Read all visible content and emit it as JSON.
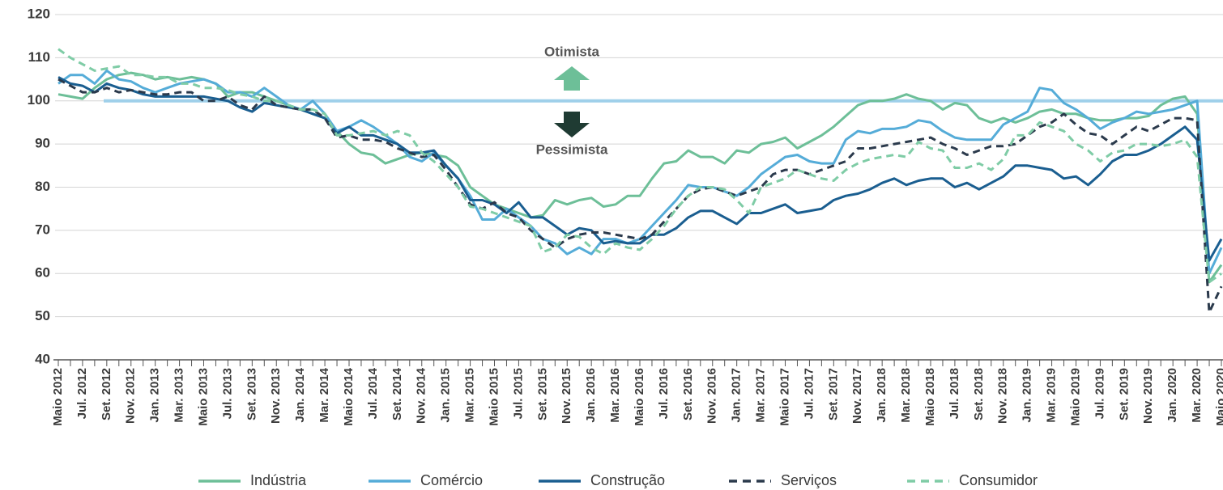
{
  "chart_data": {
    "type": "line",
    "categories": [
      "Maio 2012",
      null,
      "Jul. 2012",
      null,
      "Set. 2012",
      null,
      "Nov. 2012",
      null,
      "Jan. 2013",
      null,
      "Mar. 2013",
      null,
      "Maio 2013",
      null,
      "Jul. 2013",
      null,
      "Set. 2013",
      null,
      "Nov. 2013",
      null,
      "Jan. 2014",
      null,
      "Mar. 2014",
      null,
      "Maio 2014",
      null,
      "Jul. 2014",
      null,
      "Set. 2014",
      null,
      "Nov. 2014",
      null,
      "Jan. 2015",
      null,
      "Mar. 2015",
      null,
      "Maio 2015",
      null,
      "Jul. 2015",
      null,
      "Set. 2015",
      null,
      "Nov. 2015",
      null,
      "Jan. 2016",
      null,
      "Mar. 2016",
      null,
      "Maio 2016",
      null,
      "Jul. 2016",
      null,
      "Set. 2016",
      null,
      "Nov. 2016",
      null,
      "Jan. 2017",
      null,
      "Mar. 2017",
      null,
      "Maio 2017",
      null,
      "Jul. 2017",
      null,
      "Set. 2017",
      null,
      "Nov. 2017",
      null,
      "Jan. 2018",
      null,
      "Mar. 2018",
      null,
      "Maio 2018",
      null,
      "Jul. 2018",
      null,
      "Set. 2018",
      null,
      "Nov. 2018",
      null,
      "Jan. 2019",
      null,
      "Mar. 2019",
      null,
      "Maio 2019",
      null,
      "Jul. 2019",
      null,
      "Set. 2019",
      null,
      "Nov. 2019",
      null,
      "Jan. 2020",
      null,
      "Mar. 2020",
      null,
      "Maio 2020"
    ],
    "series": [
      {
        "name": "Indústria",
        "color": "#6dbf98",
        "dash": false,
        "values": [
          101.5,
          101,
          100.5,
          103,
          105,
          106,
          106.5,
          106,
          105,
          105.5,
          105,
          105.5,
          105,
          104,
          101,
          102,
          102,
          101,
          100,
          99,
          98,
          97,
          96,
          93,
          90,
          88,
          87.5,
          85.5,
          86.5,
          87.5,
          88,
          87.5,
          87,
          85,
          80,
          78,
          76,
          75,
          74,
          73,
          73.5,
          77,
          76,
          77,
          77.5,
          75.5,
          76,
          78,
          78,
          82,
          85.5,
          86,
          88.5,
          87,
          87,
          85.5,
          88.5,
          88,
          90,
          90.5,
          91.5,
          89,
          90.5,
          92,
          94,
          96.5,
          99,
          100,
          100,
          100.5,
          101.5,
          100.5,
          100,
          98,
          99.5,
          99,
          96,
          95,
          96,
          95,
          96,
          97.5,
          98,
          97,
          97,
          96,
          95.5,
          95.5,
          96,
          96,
          96.5,
          99,
          100.5,
          101,
          97,
          58,
          62
        ]
      },
      {
        "name": "Comércio",
        "color": "#55acd8",
        "dash": false,
        "values": [
          104,
          106,
          106,
          104,
          107,
          105,
          104.5,
          103,
          102,
          103,
          104,
          104.5,
          105,
          104,
          102,
          102,
          101,
          103,
          101,
          99,
          98,
          100,
          97,
          93,
          94,
          95.5,
          94,
          92,
          90,
          87,
          86,
          88,
          85,
          82,
          78,
          72.5,
          72.5,
          75,
          73,
          71,
          68,
          67,
          64.5,
          66,
          64.5,
          68,
          68,
          67,
          68,
          71,
          74,
          77,
          80.5,
          80,
          80,
          79,
          78,
          80,
          83,
          85,
          87,
          87.5,
          86,
          85.5,
          85.5,
          91,
          93,
          92.5,
          93.5,
          93.5,
          94,
          95.5,
          95,
          93,
          91.5,
          91,
          91,
          91,
          94.5,
          96,
          97.5,
          103,
          102.5,
          99.5,
          98,
          96,
          93.5,
          95,
          96,
          97.5,
          97,
          97.5,
          98,
          99,
          100,
          60,
          66
        ]
      },
      {
        "name": "Construção",
        "color": "#1a5e90",
        "dash": false,
        "values": [
          105.5,
          104,
          103.5,
          102,
          104,
          103,
          102.5,
          101.5,
          101,
          101,
          101,
          101,
          101,
          100.5,
          100,
          98.5,
          97.5,
          99.5,
          99,
          98.5,
          98,
          97,
          96,
          92.5,
          94,
          92,
          92,
          91,
          90,
          88,
          88,
          88.5,
          85,
          82,
          77,
          77,
          76,
          74,
          76.5,
          73,
          73,
          71,
          69,
          70.5,
          70,
          67,
          67.5,
          67,
          67,
          69,
          69,
          70.5,
          73,
          74.5,
          74.5,
          73,
          71.5,
          74,
          74,
          75,
          76,
          74,
          74.5,
          75,
          77,
          78,
          78.5,
          79.5,
          81,
          82,
          80.5,
          81.5,
          82,
          82,
          80,
          81,
          79.5,
          81,
          82.5,
          85,
          85,
          84.5,
          84,
          82,
          82.5,
          80.5,
          83,
          86,
          87.5,
          87.5,
          88.5,
          90,
          92,
          94,
          91,
          63,
          68
        ]
      },
      {
        "name": "Serviços",
        "color": "#2b3a4c",
        "dash": true,
        "values": [
          105,
          103.5,
          102,
          102,
          103,
          102,
          102.5,
          102,
          101.5,
          101.5,
          102,
          102,
          100,
          100,
          101,
          99,
          98,
          101,
          99,
          98.5,
          98,
          98,
          96,
          91.5,
          92,
          91,
          91,
          90.5,
          89,
          88,
          87,
          87.5,
          84,
          80,
          76,
          75,
          76.5,
          74,
          73,
          70,
          68,
          66,
          68,
          69,
          69.5,
          69.5,
          69,
          68.5,
          68,
          69,
          72,
          75,
          78,
          79.5,
          80,
          79,
          78,
          79,
          80,
          83,
          84,
          84,
          83,
          84,
          85,
          86,
          89,
          89,
          89.5,
          90,
          90.5,
          91,
          91.5,
          90,
          89,
          87.5,
          88.5,
          89.5,
          89.5,
          90,
          92,
          94,
          95,
          97,
          94.5,
          92.5,
          92,
          90,
          92,
          94,
          93,
          94.5,
          96,
          96,
          95.5,
          51,
          57
        ]
      },
      {
        "name": "Consumidor",
        "color": "#7fcca6",
        "dash": true,
        "values": [
          112,
          110,
          108.5,
          107,
          107.5,
          108,
          106,
          106,
          105.5,
          105.5,
          104,
          104,
          103,
          103,
          102.5,
          101.5,
          101,
          100,
          100,
          99,
          98,
          98,
          97,
          92,
          92,
          92.5,
          93,
          92,
          93,
          92,
          88,
          86,
          83,
          80,
          75.5,
          75,
          74,
          73,
          72,
          71,
          65,
          66,
          69,
          68.5,
          66,
          64.5,
          67,
          66,
          65.5,
          68,
          71,
          75,
          78,
          80,
          80,
          79.5,
          77,
          74,
          80,
          81,
          82,
          84,
          83,
          82,
          81.5,
          84,
          85.5,
          86.5,
          87,
          87.5,
          87,
          90.5,
          89,
          88.5,
          84.5,
          84.5,
          85.5,
          84,
          86.5,
          92,
          92,
          95,
          94,
          93,
          90,
          88.5,
          86,
          88,
          88.5,
          90,
          90,
          89.5,
          90,
          91,
          87,
          58,
          60
        ]
      }
    ],
    "reference_value": 100,
    "reference_color": "#9fd0ea",
    "annotations": [
      {
        "text": "Otimista",
        "color": "#6dbf98"
      },
      {
        "text": "Pessimista",
        "color": "#1f3b33"
      }
    ],
    "ylim": [
      40,
      120
    ],
    "yticks": [
      40,
      50,
      60,
      70,
      80,
      90,
      100,
      110,
      120
    ],
    "grid": true
  }
}
